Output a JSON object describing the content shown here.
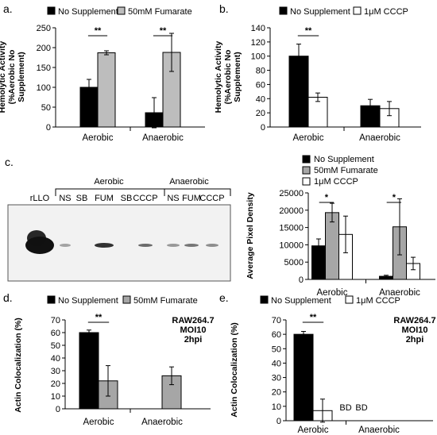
{
  "chart_data": [
    {
      "type": "bar",
      "panel": "a.",
      "ylabel": "Hemolytic Activity\n(%Aerobic No\nSupplement)",
      "categories": [
        "Aerobic",
        "Anaerobic"
      ],
      "ylim": [
        0,
        250
      ],
      "yticks": [
        0,
        50,
        100,
        150,
        200,
        250
      ],
      "series": [
        {
          "name": "No Supplement",
          "color": "#000000",
          "values": [
            100,
            36
          ],
          "errors": [
            20,
            38
          ]
        },
        {
          "name": "50mM Fumarate",
          "color": "#bdbdbd",
          "values": [
            187,
            188
          ],
          "errors": [
            5,
            48
          ]
        }
      ],
      "significance": [
        "**",
        "**"
      ]
    },
    {
      "type": "bar",
      "panel": "b.",
      "ylabel": "Hemolytic Activity\n(%Aerobic No\nSupplement)",
      "categories": [
        "Aerobic",
        "Anaerobic"
      ],
      "ylim": [
        0,
        140
      ],
      "yticks": [
        0,
        20,
        40,
        60,
        80,
        100,
        120,
        140
      ],
      "series": [
        {
          "name": "No Supplement",
          "color": "#000000",
          "values": [
            100,
            30
          ],
          "errors": [
            17,
            9
          ]
        },
        {
          "name": "1μM CCCP",
          "color": "#ffffff",
          "values": [
            42,
            26
          ],
          "errors": [
            6,
            10
          ]
        }
      ],
      "significance": [
        "**",
        ""
      ]
    },
    {
      "type": "bar",
      "panel": "c.",
      "ylabel": "Average Pixel Density",
      "categories": [
        "Aerobic",
        "Anaerobic"
      ],
      "ylim": [
        0,
        25000
      ],
      "yticks": [
        0,
        5000,
        10000,
        15000,
        20000,
        25000
      ],
      "series": [
        {
          "name": "No Supplement",
          "color": "#000000",
          "values": [
            9700,
            900
          ],
          "errors": [
            2000,
            300
          ]
        },
        {
          "name": "50mM Fumarate",
          "color": "#a6a6a6",
          "values": [
            19300,
            15200
          ],
          "errors": [
            2700,
            8100
          ]
        },
        {
          "name": "1μM CCCP",
          "color": "#ffffff",
          "values": [
            13000,
            4600
          ],
          "errors": [
            5300,
            1800
          ]
        }
      ],
      "significance": [
        "*",
        "*"
      ]
    },
    {
      "type": "bar",
      "panel": "d.",
      "ylabel": "Actin Colocalization (%)",
      "categories": [
        "Aerobic",
        "Anaerobic"
      ],
      "ylim": [
        0,
        70
      ],
      "yticks": [
        0,
        10,
        20,
        30,
        40,
        50,
        60,
        70
      ],
      "series": [
        {
          "name": "No Supplement",
          "color": "#000000",
          "values": [
            60,
            null
          ],
          "errors": [
            2,
            null
          ]
        },
        {
          "name": "50mM Fumarate",
          "color": "#a6a6a6",
          "values": [
            22,
            26
          ],
          "errors": [
            12,
            7
          ]
        }
      ],
      "significance": [
        "**",
        ""
      ],
      "annotation": [
        "RAW264.7",
        "MOI10",
        "2hpi"
      ]
    },
    {
      "type": "bar",
      "panel": "e.",
      "ylabel": "Actin Colocalization (%)",
      "categories": [
        "Aerobic",
        "Anaerobic"
      ],
      "ylim": [
        0,
        70
      ],
      "yticks": [
        0,
        10,
        20,
        30,
        40,
        50,
        60,
        70
      ],
      "series": [
        {
          "name": "No Supplement",
          "color": "#000000",
          "values": [
            60,
            null
          ],
          "errors": [
            2,
            null
          ]
        },
        {
          "name": "1μM CCCP",
          "color": "#ffffff",
          "values": [
            7,
            null
          ],
          "errors": [
            8,
            null
          ]
        }
      ],
      "significance": [
        "**",
        ""
      ],
      "annotation": [
        "RAW264.7",
        "MOI10",
        "2hpi"
      ],
      "value_labels": [
        "BD",
        "BD"
      ]
    }
  ],
  "blot": {
    "lane_labels": [
      "rLLO",
      "NS",
      "SB",
      "FUM",
      "SB",
      "CCCP",
      "NS",
      "FUM",
      "CCCP"
    ],
    "group_labels": [
      "Aerobic",
      "Anaerobic"
    ]
  }
}
